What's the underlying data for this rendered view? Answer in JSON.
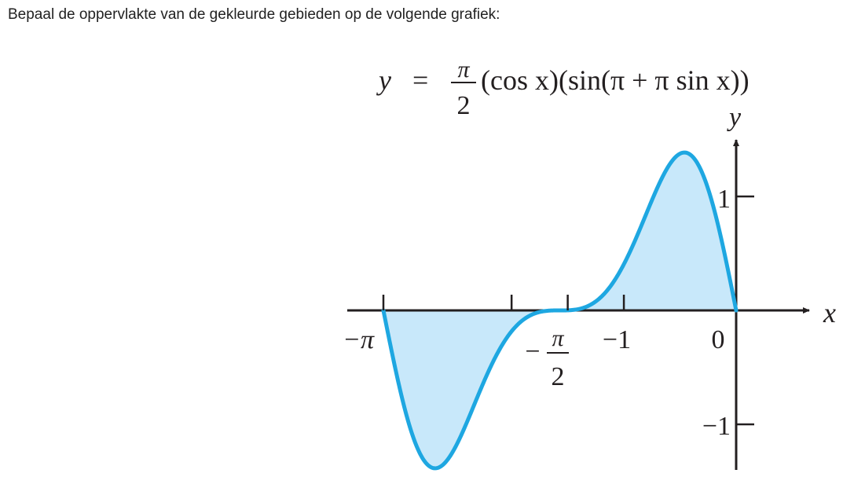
{
  "question": "Bepaal de oppervlakte van de gekleurde gebieden op de volgende grafiek:",
  "colors": {
    "curve": "#1ea7e1",
    "fill": "#c8e8fa",
    "axis": "#231f20"
  },
  "chart_data": {
    "type": "area",
    "title": {
      "lhs": "y",
      "eq": "=",
      "frac_num": "π",
      "frac_den": "2",
      "rhs": "(cos x)(sin(π + π sin x))"
    },
    "function": "y = (π/2)(cos x)(sin(π + π sin x))",
    "xlabel": "x",
    "ylabel": "y",
    "xlim": [
      -3.14159,
      0
    ],
    "ylim": [
      -1.3,
      1.3
    ],
    "x_tick_labels": [
      {
        "value": -3.14159,
        "text": "−π"
      },
      {
        "value": -1.5708,
        "num": "π",
        "den": "2",
        "sign": "−"
      },
      {
        "value": -1,
        "text": "−1"
      },
      {
        "value": 0,
        "text": "0"
      }
    ],
    "x_ticks_unlabeled": [
      -2,
      -1.5
    ],
    "y_tick_labels": [
      {
        "value": 1,
        "text": "1"
      },
      {
        "value": -1,
        "text": "−1"
      }
    ],
    "shaded": "region between curve and x-axis on [−π, 0]"
  }
}
